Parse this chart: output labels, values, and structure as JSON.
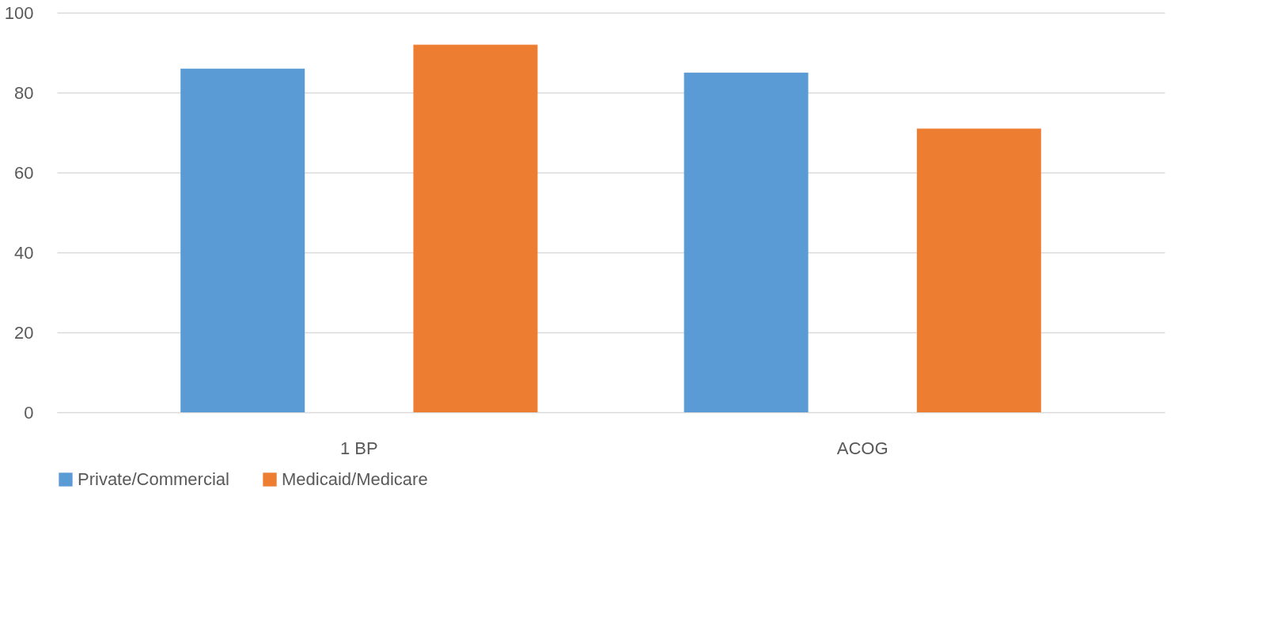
{
  "chart_data": {
    "type": "bar",
    "categories": [
      "1 BP",
      "ACOG"
    ],
    "series": [
      {
        "name": "Private/Commercial",
        "color": "#5b9bd5",
        "values": [
          86,
          85
        ]
      },
      {
        "name": "Medicaid/Medicare",
        "color": "#ed7d31",
        "values": [
          92,
          71
        ]
      }
    ],
    "ylim": [
      0,
      100
    ],
    "yticks": [
      0,
      20,
      40,
      60,
      80,
      100
    ],
    "grid": "y",
    "legend": "bottom"
  }
}
